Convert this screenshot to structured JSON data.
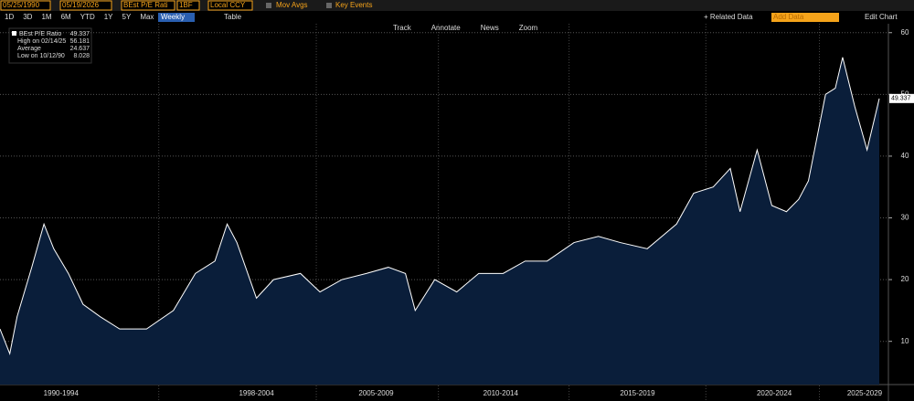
{
  "toolbar": {
    "start_date": "05/25/1990",
    "end_date": "05/19/2026",
    "field": "BEst P/E Rati",
    "field_code": "1BF",
    "currency": "Local CCY",
    "mov_avgs": "Mov Avgs",
    "key_events": "Key Events",
    "related_data": "+ Related Data",
    "add_data": "Add Data",
    "edit_chart": "Edit Chart",
    "periods": [
      "1D",
      "3D",
      "1M",
      "6M",
      "YTD",
      "1Y",
      "5Y",
      "Max"
    ],
    "frequency": "Weekly",
    "table": "Table",
    "tools": [
      "Track",
      "Annotate",
      "News",
      "Zoom"
    ]
  },
  "chart_data": {
    "type": "area",
    "legend_stats": [
      {
        "label": "BEst P/E Ratio",
        "value": 49.337
      },
      {
        "label": "High on 02/14/25",
        "value": 56.181
      },
      {
        "label": "Average",
        "value": 24.637
      },
      {
        "label": "Low on 10/12/90",
        "value": 8.028
      }
    ],
    "x": [
      1990.4,
      1990.8,
      1991.1,
      1991.7,
      1992.2,
      1992.6,
      1993.2,
      1993.8,
      1994.5,
      1995.3,
      1996.4,
      1997.5,
      1998.4,
      1999.2,
      1999.7,
      2000.1,
      2000.9,
      2001.6,
      2002.7,
      2003.5,
      2004.4,
      2005.4,
      2006.3,
      2007.0,
      2007.4,
      2008.2,
      2009.1,
      2010.0,
      2011.0,
      2011.9,
      2012.8,
      2013.9,
      2014.9,
      2015.8,
      2016.9,
      2018.1,
      2018.8,
      2019.6,
      2020.3,
      2020.7,
      2021.4,
      2022.0,
      2022.6,
      2023.1,
      2023.5,
      2023.9,
      2024.2,
      2024.6,
      2024.9,
      2025.4,
      2025.9,
      2026.4
    ],
    "series": [
      {
        "name": "BEst P/E Ratio",
        "color": "#ffffff",
        "values": [
          12,
          8,
          14,
          22,
          29,
          25,
          21,
          16,
          14,
          12,
          12,
          15,
          21,
          23,
          29,
          26,
          17,
          20,
          21,
          18,
          20,
          21,
          22,
          21,
          15,
          20,
          18,
          21,
          21,
          23,
          23,
          26,
          27,
          26,
          25,
          29,
          34,
          35,
          38,
          31,
          41,
          32,
          31,
          33,
          36,
          44,
          50,
          51,
          56,
          48,
          41,
          49.337
        ]
      }
    ],
    "xlim": [
      1990.4,
      2026.4
    ],
    "ylim": [
      3,
      61
    ],
    "yticks": [
      10,
      20,
      30,
      40,
      50,
      60
    ],
    "xticks": [
      {
        "value": 1992.9,
        "label": "1990-1994"
      },
      {
        "value": 2000.9,
        "label": "1998-2004"
      },
      {
        "value": 2005.8,
        "label": "2005-2009"
      },
      {
        "value": 2010.9,
        "label": "2010-2014"
      },
      {
        "value": 2016.5,
        "label": "2015-2019"
      },
      {
        "value": 2022.1,
        "label": "2020-2024"
      },
      {
        "value": 2025.8,
        "label": "2025-2029"
      }
    ],
    "grid": true,
    "fill_color": "#0a1e3a"
  }
}
